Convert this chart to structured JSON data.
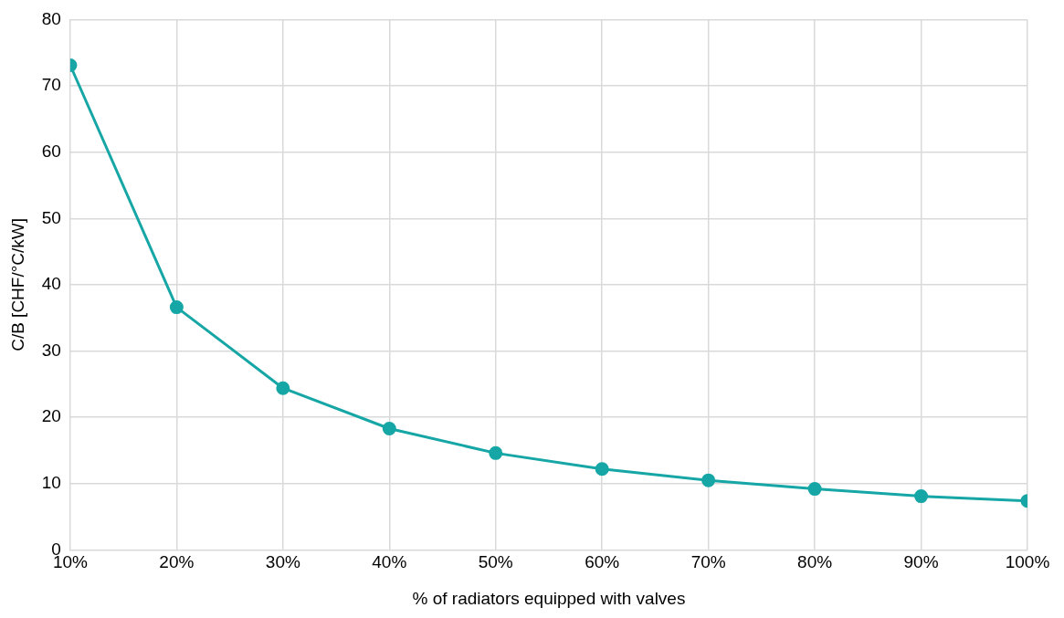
{
  "chart_data": {
    "type": "line",
    "xlabel": "% of radiators equipped with valves",
    "ylabel": "C/B [CHF/°C/kW]",
    "x": [
      10,
      20,
      30,
      40,
      50,
      60,
      70,
      80,
      90,
      100
    ],
    "series": [
      {
        "color": "#16a6a6",
        "values": [
          73.1,
          36.6,
          24.4,
          18.3,
          14.6,
          12.2,
          10.5,
          9.2,
          8.1,
          7.4
        ]
      }
    ],
    "xlim": [
      10,
      100
    ],
    "xticks": [
      {
        "value": 10,
        "label": "10%"
      },
      {
        "value": 20,
        "label": "20%"
      },
      {
        "value": 30,
        "label": "30%"
      },
      {
        "value": 40,
        "label": "40%"
      },
      {
        "value": 50,
        "label": "50%"
      },
      {
        "value": 60,
        "label": "60%"
      },
      {
        "value": 70,
        "label": "70%"
      },
      {
        "value": 80,
        "label": "80%"
      },
      {
        "value": 90,
        "label": "90%"
      },
      {
        "value": 100,
        "label": "100%"
      }
    ],
    "ylim": [
      0,
      80
    ],
    "yticks": [
      0,
      10,
      20,
      30,
      40,
      50,
      60,
      70,
      80
    ],
    "grid": true,
    "marker": "circle",
    "line_style": "solid",
    "legend": false
  }
}
